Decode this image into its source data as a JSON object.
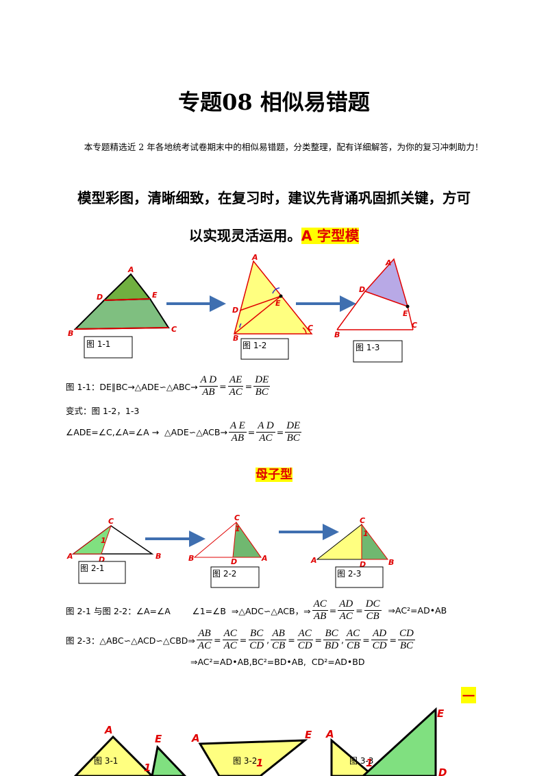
{
  "title": "专题08  相似易错题",
  "intro": "本专题精选近 2 年各地统考试卷期末中的相似易错题，分类整理，配有详细解答，为你的复习冲刺助力！",
  "heading": {
    "line1": "模型彩图，清晰细致，在复习时，建议先背诵巩固抓关键，方可",
    "line2": "以实现灵活运用。",
    "highlight": "A 字型模"
  },
  "figures": [
    {
      "caption": "图 1-1",
      "labels": [
        "A",
        "D",
        "E",
        "B",
        "C"
      ]
    },
    {
      "caption": "图 1-2",
      "labels": [
        "A",
        "D",
        "E",
        "B",
        "C"
      ]
    },
    {
      "caption": "图 1-3",
      "labels": [
        "A",
        "D",
        "E",
        "B",
        "C"
      ]
    },
    {
      "caption": "图 2-1",
      "labels": [
        "C",
        "1",
        "A",
        "D",
        "B"
      ]
    },
    {
      "caption": "图 2-2",
      "labels": [
        "C",
        "1",
        "B",
        "D",
        "A"
      ]
    },
    {
      "caption": "图 2-3",
      "labels": [
        "C",
        "1",
        "A",
        "D",
        "B"
      ]
    },
    {
      "caption": "图 3-1",
      "labels": [
        "A",
        "E",
        "1"
      ]
    },
    {
      "caption": "图 3-2",
      "labels": [
        "A",
        "E",
        "1"
      ]
    },
    {
      "caption": "图 3-3",
      "labels": [
        "A",
        "E",
        "D",
        "1"
      ]
    }
  ],
  "formulas_a": [
    {
      "parts": [
        "图 1-1：DE∥BC→△ADE∽△ABC→",
        {
          "num": "A D",
          "den": "AB"
        },
        "=",
        {
          "num": "AE",
          "den": "AC"
        },
        "=",
        {
          "num": "DE",
          "den": "BC"
        }
      ]
    },
    {
      "parts": [
        "变式：图 1-2，1-3"
      ]
    },
    {
      "parts": [
        "∠ADE=∠C,∠A=∠A →  △ADE∽△ACB→",
        {
          "num": "A E",
          "den": "AB"
        },
        "=",
        {
          "num": "A D",
          "den": "AC"
        },
        "=",
        {
          "num": "DE",
          "den": "BC"
        }
      ]
    }
  ],
  "section_b": "母子型",
  "formulas_b": [
    {
      "parts": [
        "图 2-1 与图 2-2：∠A=∠A        ∠1=∠B  ⇒△ADC∽△ACB，⇒",
        {
          "num": "AC",
          "den": "AB"
        },
        "=",
        {
          "num": "AD",
          "den": "AC"
        },
        "=",
        {
          "num": "DC",
          "den": "CB"
        },
        "  ⇒AC²=AD•AB"
      ]
    },
    {
      "parts": [
        "图 2-3：△ABC∽△ACD∽△CBD⇒",
        {
          "num": "AB",
          "den": "AC"
        },
        "=",
        {
          "num": "AC",
          "den": "AC"
        },
        "=",
        {
          "num": "BC",
          "den": "CD"
        },
        ",",
        {
          "num": "AB",
          "den": "CB"
        },
        "=",
        {
          "num": "AC",
          "den": "CD"
        },
        "=",
        {
          "num": "BC",
          "den": "BD"
        },
        ",",
        {
          "num": "AC",
          "den": "CB"
        },
        "=",
        {
          "num": "AD",
          "den": "CD"
        },
        "=",
        {
          "num": "CD",
          "den": "BC"
        }
      ]
    },
    {
      "parts": [
        "⇒AC²=AD•AB,BC²=BD•AB,  CD²=AD•BD"
      ]
    }
  ],
  "marker": "一"
}
